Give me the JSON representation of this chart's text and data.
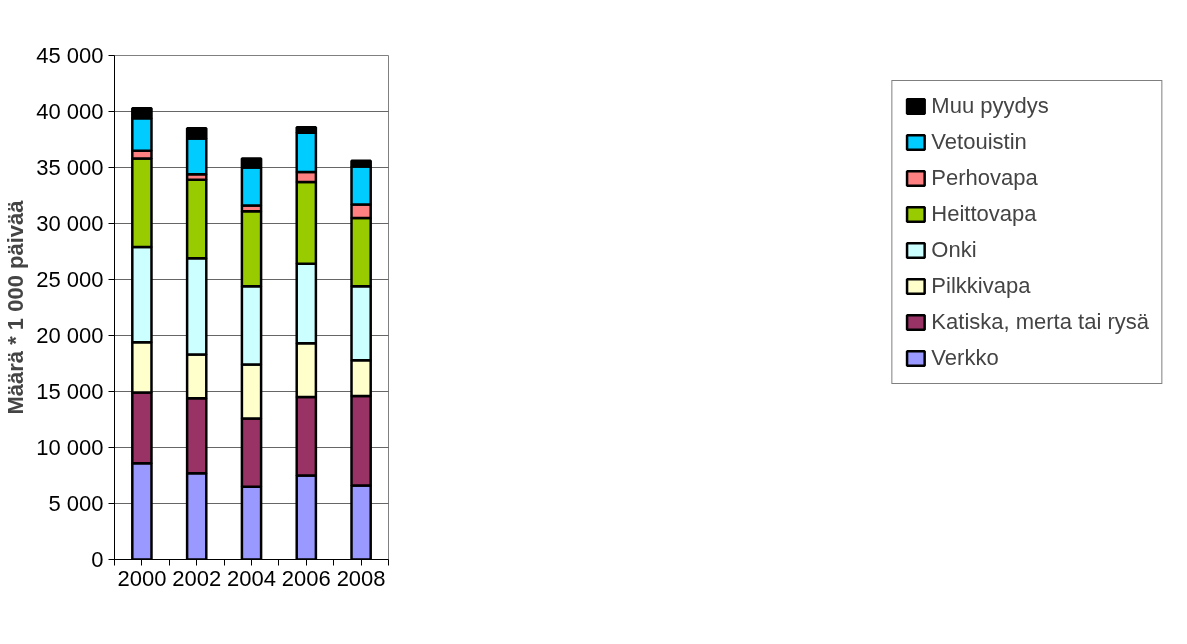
{
  "chart_data": {
    "type": "bar",
    "stacked": true,
    "ylabel": "Määrä * 1 000 päivää",
    "categories": [
      "2000",
      "2002",
      "2004",
      "2006",
      "2008"
    ],
    "series": [
      {
        "name": "Verkko",
        "color": "#9999ff",
        "values": [
          8600,
          7700,
          6500,
          7500,
          6600
        ]
      },
      {
        "name": "Katiska, merta tai rysä",
        "color": "#993366",
        "values": [
          6300,
          6700,
          6100,
          7000,
          8000
        ]
      },
      {
        "name": "Pilkkivapa",
        "color": "#ffffcc",
        "values": [
          4500,
          3900,
          4800,
          4800,
          3200
        ]
      },
      {
        "name": "Onki",
        "color": "#ccffff",
        "values": [
          8500,
          8600,
          7000,
          7100,
          6600
        ]
      },
      {
        "name": "Heittovapa",
        "color": "#99cc00",
        "values": [
          7900,
          7000,
          6700,
          7300,
          6100
        ]
      },
      {
        "name": "Perhovapa",
        "color": "#ff8080",
        "values": [
          700,
          500,
          500,
          900,
          1200
        ]
      },
      {
        "name": "Vetouistin",
        "color": "#00ccff",
        "values": [
          2900,
          3200,
          3400,
          3500,
          3400
        ]
      },
      {
        "name": "Muu pyydys",
        "color": "#000000",
        "values": [
          900,
          900,
          800,
          500,
          500
        ]
      }
    ],
    "ylim": [
      0,
      45000
    ],
    "yticks": [
      {
        "value": 0,
        "label": "0"
      },
      {
        "value": 5000,
        "label": "5 000"
      },
      {
        "value": 10000,
        "label": "10 000"
      },
      {
        "value": 15000,
        "label": "15 000"
      },
      {
        "value": 20000,
        "label": "20 000"
      },
      {
        "value": 25000,
        "label": "25 000"
      },
      {
        "value": 30000,
        "label": "30 000"
      },
      {
        "value": 35000,
        "label": "35 000"
      },
      {
        "value": 40000,
        "label": "40 000"
      },
      {
        "value": 45000,
        "label": "45 000"
      }
    ],
    "grid": "y",
    "legend": "right"
  }
}
